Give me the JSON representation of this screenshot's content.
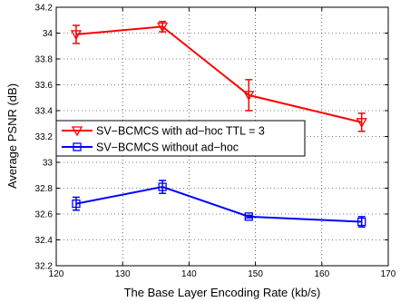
{
  "chart_data": {
    "type": "line",
    "xlabel": "The Base Layer Encoding Rate (kb/s)",
    "ylabel": "Average PSNR (dB)",
    "xlim": [
      120,
      170
    ],
    "ylim": [
      32.2,
      34.2
    ],
    "x_ticks": [
      120,
      130,
      140,
      150,
      160,
      170
    ],
    "y_ticks": [
      32.2,
      32.4,
      32.6,
      32.8,
      33,
      33.2,
      33.4,
      33.6,
      33.8,
      34,
      34.2
    ],
    "grid": true,
    "legend_position": "center-left",
    "series": [
      {
        "name": "SV−BCMCS with ad−hoc TTL = 3",
        "color": "#ff0000",
        "marker": "triangle-down",
        "x": [
          123,
          136,
          149,
          166
        ],
        "y": [
          33.99,
          34.05,
          33.52,
          33.31
        ],
        "err": [
          0.07,
          0.04,
          0.12,
          0.07
        ]
      },
      {
        "name": "SV−BCMCS without ad−hoc",
        "color": "#0000ff",
        "marker": "square",
        "x": [
          123,
          136,
          149,
          166
        ],
        "y": [
          32.68,
          32.81,
          32.58,
          32.54
        ],
        "err": [
          0.05,
          0.05,
          0.01,
          0.04
        ]
      }
    ]
  }
}
